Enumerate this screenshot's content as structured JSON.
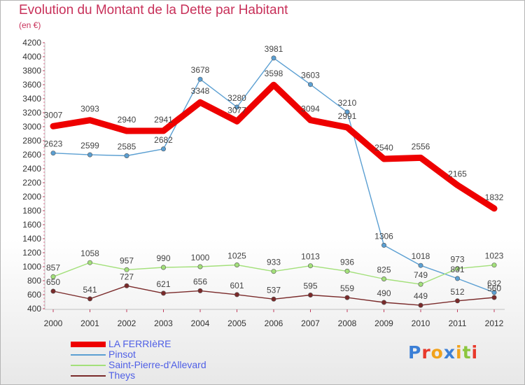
{
  "header": {
    "title": "Evolution du Montant de la Dette par Habitant",
    "subtitle": "(en €)"
  },
  "logo": {
    "text": "Proxiti",
    "letter_colors": [
      "#3b7fd6",
      "#e8392b",
      "#f1a21c",
      "#3b7fd6",
      "#f1a21c",
      "#8cc63e",
      "#e8392b"
    ]
  },
  "chart_data": {
    "type": "line",
    "title": "Evolution du Montant de la Dette par Habitant",
    "subtitle": "(en €)",
    "xlabel": "",
    "ylabel": "",
    "x": [
      "2000",
      "2001",
      "2002",
      "2003",
      "2004",
      "2005",
      "2006",
      "2007",
      "2008",
      "2009",
      "2010",
      "2011",
      "2012"
    ],
    "ylim": [
      400,
      4200
    ],
    "yticks": [
      400,
      600,
      800,
      1000,
      1200,
      1400,
      1600,
      1800,
      2000,
      2200,
      2400,
      2600,
      2800,
      3000,
      3200,
      3400,
      3600,
      3800,
      4000,
      4200
    ],
    "grid": false,
    "legend_position": "bottom-left",
    "series": [
      {
        "name": "LA FERRIèRE",
        "color": "#ee0000",
        "style": "thick",
        "markers": false,
        "values": [
          3007,
          3093,
          2940,
          2941,
          3348,
          3077,
          3598,
          3094,
          2991,
          2540,
          2556,
          2165,
          1832
        ]
      },
      {
        "name": "Pinsot",
        "color": "#5b9fd2",
        "style": "thin",
        "markers": true,
        "values": [
          2623,
          2599,
          2585,
          2682,
          3678,
          3280,
          3981,
          3603,
          3210,
          1306,
          1018,
          831,
          632
        ]
      },
      {
        "name": "Saint-Pierre-d'Allevard",
        "color": "#a3e07a",
        "style": "thin",
        "markers": true,
        "values": [
          857,
          1058,
          957,
          990,
          1000,
          1025,
          933,
          1013,
          936,
          825,
          749,
          973,
          1023
        ]
      },
      {
        "name": "Theys",
        "color": "#7a2a2a",
        "style": "thin",
        "markers": true,
        "values": [
          650,
          541,
          727,
          621,
          656,
          601,
          537,
          595,
          559,
          490,
          449,
          512,
          560
        ]
      }
    ]
  }
}
